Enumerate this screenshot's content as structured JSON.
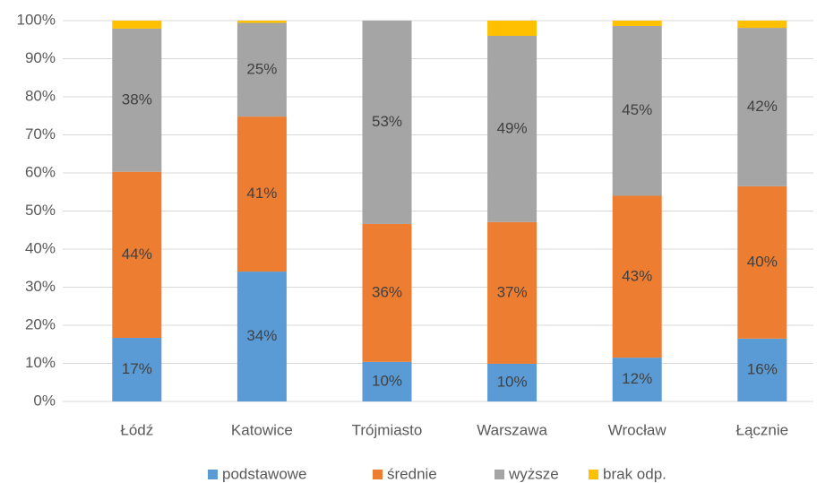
{
  "chart_data": {
    "type": "stacked_bar",
    "categories": [
      "Łódź",
      "Katowice",
      "Trójmiasto",
      "Warszawa",
      "Wrocław",
      "Łącznie"
    ],
    "series": [
      {
        "name": "podstawowe",
        "color": "#5b9bd5",
        "values": [
          16.7,
          34.1,
          10.4,
          9.9,
          11.5,
          16.5
        ],
        "value_labels": [
          "17%",
          "34%",
          "10%",
          "10%",
          "12%",
          "16%"
        ]
      },
      {
        "name": "średnie",
        "color": "#ed7d31",
        "values": [
          43.6,
          40.7,
          36.2,
          37.2,
          42.5,
          40.0
        ],
        "value_labels": [
          "44%",
          "41%",
          "36%",
          "37%",
          "43%",
          "40%"
        ]
      },
      {
        "name": "wyższe",
        "color": "#a5a5a5",
        "values": [
          37.6,
          24.6,
          53.4,
          48.9,
          44.6,
          41.6
        ],
        "value_labels": [
          "38%",
          "25%",
          "53%",
          "49%",
          "45%",
          "42%"
        ]
      },
      {
        "name": "brak odp.",
        "color": "#ffc000",
        "values": [
          2.1,
          0.6,
          0,
          4.0,
          1.4,
          1.9
        ]
      }
    ],
    "ylim": [
      0,
      100
    ],
    "yticks": [
      {
        "value": 0,
        "label": "0%"
      },
      {
        "value": 10,
        "label": "10%"
      },
      {
        "value": 20,
        "label": "20%"
      },
      {
        "value": 30,
        "label": "30%"
      },
      {
        "value": 40,
        "label": "40%"
      },
      {
        "value": 50,
        "label": "50%"
      },
      {
        "value": 60,
        "label": "60%"
      },
      {
        "value": 70,
        "label": "70%"
      },
      {
        "value": 80,
        "label": "80%"
      },
      {
        "value": 90,
        "label": "90%"
      },
      {
        "value": 100,
        "label": "100%"
      }
    ],
    "grid": true,
    "legend": "bottom"
  }
}
